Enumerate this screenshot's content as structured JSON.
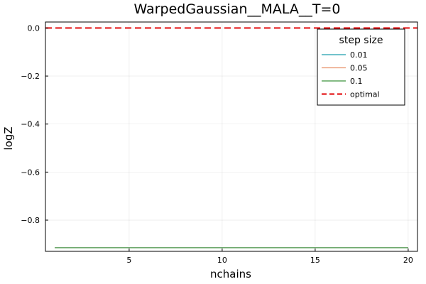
{
  "chart_data": {
    "type": "line",
    "title": "WarpedGaussian__MALA__T=0",
    "xlabel": "nchains",
    "ylabel": "logZ",
    "xlim": [
      0.5,
      20.5
    ],
    "ylim": [
      -0.93,
      0.025
    ],
    "xticks": [
      5,
      10,
      15,
      20
    ],
    "yticks": [
      0.0,
      -0.2,
      -0.4,
      -0.6,
      -0.8
    ],
    "ytick_labels": [
      "0.0",
      "−0.2",
      "−0.4",
      "−0.6",
      "−0.8"
    ],
    "grid": true,
    "legend": {
      "title": "step size",
      "position": "top-right"
    },
    "series": [
      {
        "name": "0.01",
        "color": "#1f9fad",
        "x": [
          1,
          20
        ],
        "y": [
          -0.915,
          -0.915
        ]
      },
      {
        "name": "0.05",
        "color": "#e8926d",
        "x": [
          1,
          20
        ],
        "y": [
          -0.915,
          -0.915
        ]
      },
      {
        "name": "0.1",
        "color": "#3a923a",
        "x": [
          1,
          20
        ],
        "y": [
          -0.915,
          -0.915
        ]
      }
    ],
    "reference_line": {
      "name": "optimal",
      "color": "#e41a1c",
      "style": "dashed",
      "y": 0.0
    }
  }
}
